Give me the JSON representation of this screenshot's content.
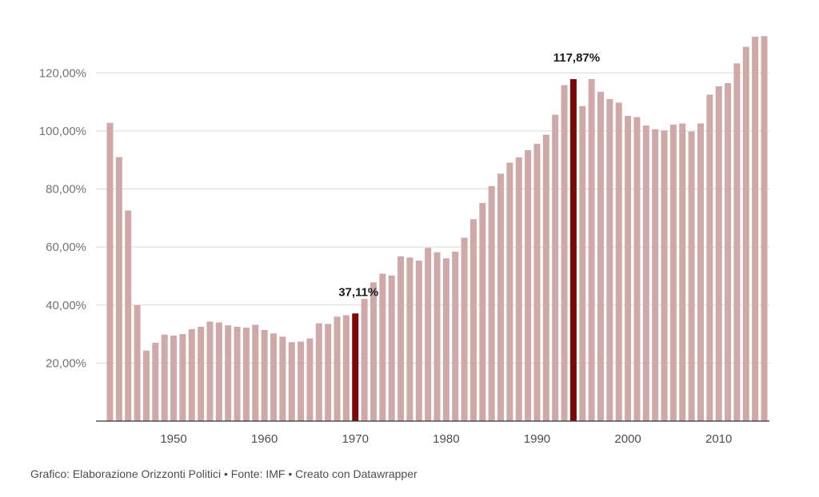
{
  "footer": "Grafico: Elaborazione Orizzonti Politici • Fonte: IMF • Creato con Datawrapper",
  "chart_data": {
    "type": "bar",
    "title": "",
    "xlabel": "",
    "ylabel": "",
    "ylim": [
      0,
      130
    ],
    "y_ticks": [
      {
        "value": 20,
        "label": "20,00%"
      },
      {
        "value": 40,
        "label": "40,00%"
      },
      {
        "value": 60,
        "label": "60,00%"
      },
      {
        "value": 80,
        "label": "80,00%"
      },
      {
        "value": 100,
        "label": "100,00%"
      },
      {
        "value": 120,
        "label": "120,00%"
      }
    ],
    "x_ticks": [
      {
        "value": 1950,
        "label": "1950"
      },
      {
        "value": 1960,
        "label": "1960"
      },
      {
        "value": 1970,
        "label": "1970"
      },
      {
        "value": 1980,
        "label": "1980"
      },
      {
        "value": 1990,
        "label": "1990"
      },
      {
        "value": 2000,
        "label": "2000"
      },
      {
        "value": 2010,
        "label": "2010"
      }
    ],
    "grid": true,
    "colors": {
      "bar": "#cfa8a8",
      "highlight": "#7a0a0a",
      "grid": "#d9d9d9",
      "axis": "#333333"
    },
    "years": [
      1943,
      1944,
      1945,
      1946,
      1947,
      1948,
      1949,
      1950,
      1951,
      1952,
      1953,
      1954,
      1955,
      1956,
      1957,
      1958,
      1959,
      1960,
      1961,
      1962,
      1963,
      1964,
      1965,
      1966,
      1967,
      1968,
      1969,
      1970,
      1971,
      1972,
      1973,
      1974,
      1975,
      1976,
      1977,
      1978,
      1979,
      1980,
      1981,
      1982,
      1983,
      1984,
      1985,
      1986,
      1987,
      1988,
      1989,
      1990,
      1991,
      1992,
      1993,
      1994,
      1995,
      1996,
      1997,
      1998,
      1999,
      2000,
      2001,
      2002,
      2003,
      2004,
      2005,
      2006,
      2007,
      2008,
      2009,
      2010,
      2011,
      2012,
      2013,
      2014,
      2015
    ],
    "values": [
      102.8,
      91.0,
      72.6,
      40.0,
      24.3,
      27.0,
      29.8,
      29.5,
      30.0,
      31.7,
      32.5,
      34.3,
      34.0,
      33.0,
      32.5,
      32.2,
      33.2,
      31.4,
      30.2,
      29.1,
      27.2,
      27.4,
      28.5,
      33.7,
      33.5,
      36.0,
      36.5,
      37.11,
      42.1,
      47.8,
      50.8,
      50.2,
      56.8,
      56.4,
      55.3,
      59.7,
      58.2,
      56.1,
      58.4,
      63.2,
      69.6,
      75.2,
      81.0,
      85.3,
      89.1,
      90.9,
      93.4,
      95.6,
      98.7,
      105.6,
      115.8,
      117.87,
      108.6,
      117.9,
      113.5,
      111.0,
      109.8,
      105.2,
      104.8,
      101.9,
      100.6,
      100.2,
      102.2,
      102.6,
      99.8,
      102.6,
      112.5,
      115.4,
      116.5,
      123.3,
      129.0,
      132.5,
      132.7
    ],
    "highlights": [
      {
        "year": 1970,
        "value": 37.11,
        "label": "37,11%"
      },
      {
        "year": 1994,
        "value": 117.87,
        "label": "117,87%"
      }
    ]
  }
}
